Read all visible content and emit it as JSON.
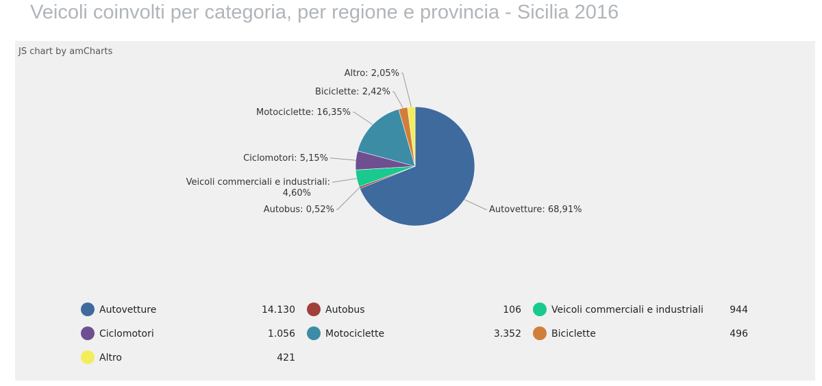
{
  "header": {
    "title": "Veicoli coinvolti per categoria, per regione e provincia - Sicilia 2016"
  },
  "credit": "JS chart by amCharts",
  "chart_data": {
    "type": "pie",
    "categories": [
      "Autovetture",
      "Autobus",
      "Veicoli commerciali e industriali",
      "Ciclomotori",
      "Motociclette",
      "Biciclette",
      "Altro"
    ],
    "values": [
      14130,
      106,
      944,
      1056,
      3352,
      496,
      421
    ],
    "value_labels": [
      "14.130",
      "106",
      "944",
      "1.056",
      "3.352",
      "496",
      "421"
    ],
    "percent_labels": [
      "68,91%",
      "0,52%",
      "4,60%",
      "5,15%",
      "16,35%",
      "2,42%",
      "2,05%"
    ],
    "colors": [
      "#3f6a9e",
      "#a13f3b",
      "#19c98f",
      "#6e4f90",
      "#3d8ca5",
      "#d07f3a",
      "#f2ee5a"
    ],
    "legend_position": "bottom"
  }
}
